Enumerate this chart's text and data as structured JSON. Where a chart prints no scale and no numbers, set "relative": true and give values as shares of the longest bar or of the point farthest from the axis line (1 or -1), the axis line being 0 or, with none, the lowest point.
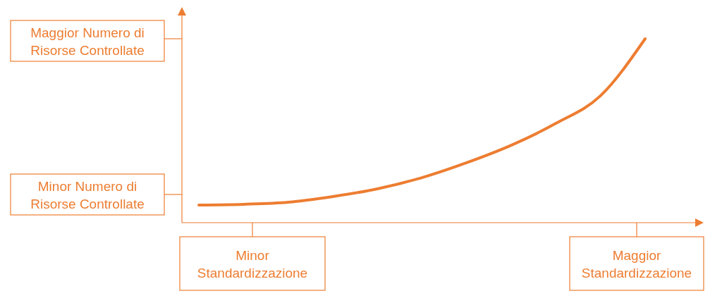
{
  "chart_data": {
    "type": "line",
    "relative": true,
    "color": "#ed7d31",
    "categories": [
      null,
      null,
      null,
      null,
      null,
      null,
      null,
      null,
      null,
      null,
      null
    ],
    "series": [
      {
        "color": "#ed7d31",
        "values": [
          0.096,
          0.1,
          0.111,
          0.142,
          0.184,
          0.245,
          0.326,
          0.421,
          0.54,
          0.69,
          1
        ]
      }
    ],
    "annotations": [
      "Maggior Numero di Risorse Controllate",
      "Minor Numero di Risorse Controllate",
      "Minor Standardizzazione",
      "Maggior Standardizzazione"
    ]
  }
}
